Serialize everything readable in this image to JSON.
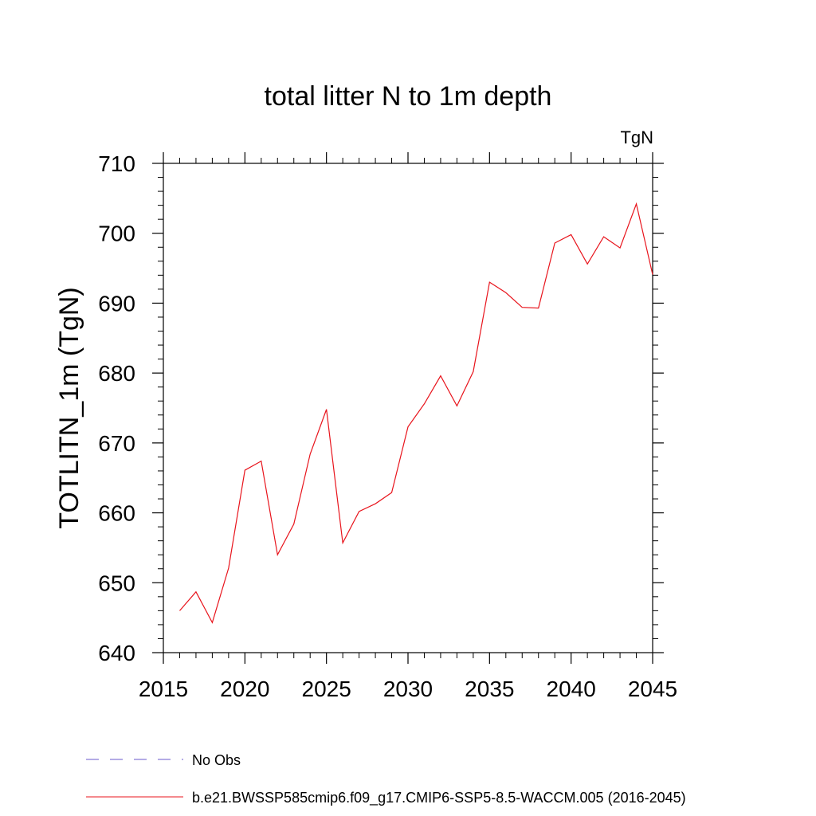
{
  "chart_data": {
    "type": "line",
    "title": "total litter N to 1m depth",
    "units_label": "TgN",
    "ylabel": "TOTLITN_1m  (TgN)",
    "xlabel": "",
    "xlim": [
      2015,
      2045
    ],
    "ylim": [
      640,
      710
    ],
    "x_ticks": [
      2015,
      2020,
      2025,
      2030,
      2035,
      2040,
      2045
    ],
    "x_tick_labels": [
      "2015",
      "2020",
      "2025",
      "2030",
      "2035",
      "2040",
      "2045"
    ],
    "y_ticks": [
      640,
      650,
      660,
      670,
      680,
      690,
      700,
      710
    ],
    "y_tick_labels": [
      "640",
      "650",
      "660",
      "670",
      "680",
      "690",
      "700",
      "710"
    ],
    "grid": false,
    "legend_position": "bottom",
    "series": [
      {
        "name": "b.e21.BWSSP585cmip6.f09_g17.CMIP6-SSP5-8.5-WACCM.005 (2016-2045)",
        "color": "#e8141c",
        "line_style": "solid",
        "x": [
          2016,
          2017,
          2018,
          2019,
          2020,
          2021,
          2022,
          2023,
          2024,
          2025,
          2026,
          2027,
          2028,
          2029,
          2030,
          2031,
          2032,
          2033,
          2034,
          2035,
          2036,
          2037,
          2038,
          2039,
          2040,
          2041,
          2042,
          2043,
          2044,
          2045
        ],
        "y": [
          646.0,
          648.7,
          644.3,
          652.1,
          666.1,
          667.4,
          654.0,
          658.4,
          668.4,
          674.8,
          655.7,
          660.2,
          661.3,
          662.9,
          672.3,
          675.6,
          679.6,
          675.3,
          680.2,
          693.0,
          691.5,
          689.4,
          689.3,
          698.6,
          699.8,
          695.6,
          699.5,
          697.9,
          704.2,
          694.1
        ]
      }
    ],
    "legend": [
      {
        "label": "No Obs",
        "color": "#6a5acd",
        "line_style": "dashed"
      },
      {
        "label": "b.e21.BWSSP585cmip6.f09_g17.CMIP6-SSP5-8.5-WACCM.005 (2016-2045)",
        "color": "#e8141c",
        "line_style": "solid"
      }
    ]
  }
}
